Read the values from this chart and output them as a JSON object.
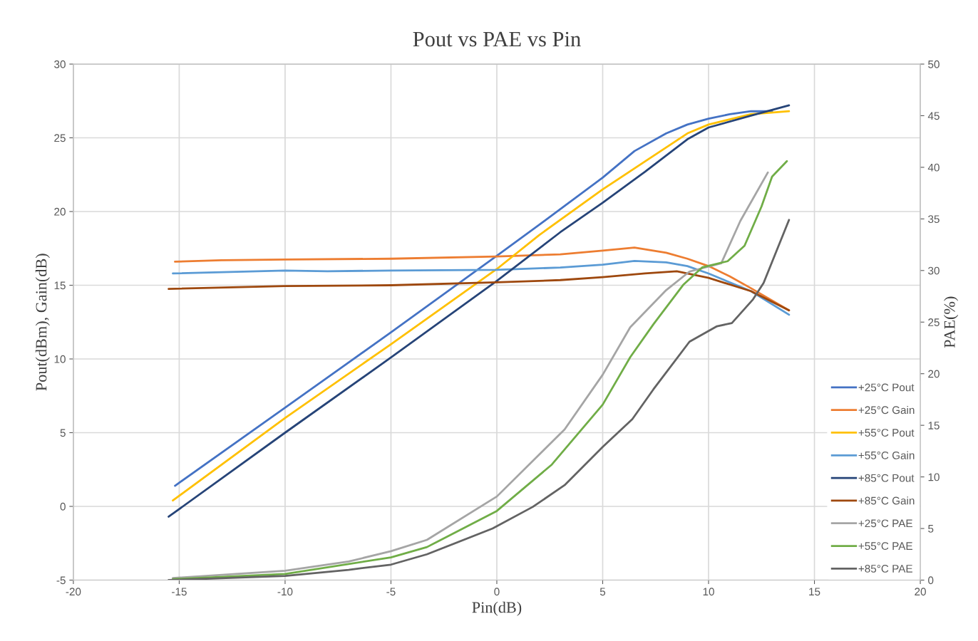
{
  "chart_data": {
    "type": "line",
    "title": "Pout vs PAE vs Pin",
    "xlabel": "Pin(dB)",
    "ylabel": "Pout(dBm), Gain(dB)",
    "y2label": "PAE(%)",
    "xlim": [
      -20,
      20
    ],
    "xticks": [
      -20,
      -15,
      -10,
      -5,
      0,
      5,
      10,
      15,
      20
    ],
    "ylim": [
      -5,
      30
    ],
    "yticks": [
      -5,
      0,
      5,
      10,
      15,
      20,
      25,
      30
    ],
    "y2lim": [
      0,
      50
    ],
    "y2ticks": [
      0,
      5,
      10,
      15,
      20,
      25,
      30,
      35,
      40,
      45,
      50
    ],
    "grid": true,
    "legend": "bottom right",
    "marker": "none",
    "line_style": "solid",
    "series": [
      {
        "name": "+25°C Pout",
        "color": "#4472c4",
        "x": [
          -15.2,
          -10,
          -5,
          0,
          2,
          5,
          6.5,
          8,
          9,
          10,
          11,
          12,
          13
        ],
        "values": [
          1.4,
          6.7,
          11.8,
          17.0,
          19.1,
          22.3,
          24.1,
          25.3,
          25.9,
          26.3,
          26.6,
          26.8,
          26.8
        ]
      },
      {
        "name": "+25°C Gain",
        "color": "#ed7d31",
        "x": [
          -15.2,
          -13,
          -10,
          -5,
          0,
          3,
          5,
          6.5,
          8,
          9,
          10,
          11,
          12,
          13.8
        ],
        "values": [
          16.6,
          16.7,
          16.75,
          16.8,
          16.95,
          17.1,
          17.35,
          17.55,
          17.2,
          16.8,
          16.3,
          15.6,
          14.8,
          13.3
        ]
      },
      {
        "name": "+55°C Pout",
        "color": "#ffc000",
        "x": [
          -15.3,
          -10,
          -5,
          0,
          2,
          5,
          7,
          9,
          10,
          12,
          13.8
        ],
        "values": [
          0.4,
          6.0,
          11.0,
          16.1,
          18.4,
          21.5,
          23.4,
          25.3,
          25.9,
          26.6,
          26.8
        ]
      },
      {
        "name": "+55°C Gain",
        "color": "#5b9bd5",
        "x": [
          -15.3,
          -10,
          -8,
          -5,
          0,
          3,
          5,
          6.5,
          8,
          9,
          10,
          12,
          13.8
        ],
        "values": [
          15.8,
          16.0,
          15.95,
          16.0,
          16.05,
          16.2,
          16.4,
          16.65,
          16.55,
          16.3,
          15.8,
          14.6,
          13.0
        ]
      },
      {
        "name": "+85°C Pout",
        "color": "#264478",
        "x": [
          -15.5,
          -10,
          -5,
          0,
          3,
          5,
          7,
          9,
          10,
          12,
          13.8
        ],
        "values": [
          -0.7,
          5.0,
          10.1,
          15.3,
          18.6,
          20.6,
          22.7,
          24.9,
          25.7,
          26.5,
          27.2
        ]
      },
      {
        "name": "+85°C Gain",
        "color": "#9e480e",
        "x": [
          -15.5,
          -10,
          -5,
          0,
          3,
          5,
          7,
          8.5,
          10,
          12,
          13.8
        ],
        "values": [
          14.75,
          14.95,
          15.0,
          15.2,
          15.35,
          15.55,
          15.8,
          15.95,
          15.5,
          14.6,
          13.3
        ]
      },
      {
        "name": "+25°C PAE",
        "color": "#a5a5a5",
        "axis": "y2",
        "x": [
          -15.3,
          -10,
          -7,
          -5,
          -3.3,
          0,
          3.2,
          5,
          6.3,
          8,
          9.1,
          10.6,
          11.5,
          12.8
        ],
        "values": [
          0.2,
          0.9,
          1.8,
          2.8,
          3.9,
          8.1,
          14.6,
          19.9,
          24.5,
          28.1,
          29.9,
          30.7,
          34.8,
          39.5
        ]
      },
      {
        "name": "+55°C PAE",
        "color": "#70ad47",
        "axis": "y2",
        "x": [
          -15.3,
          -10,
          -5,
          -3.3,
          0,
          2.6,
          5,
          6.3,
          7.4,
          8.8,
          9.7,
          10.9,
          11.7,
          12.5,
          13,
          13.7
        ],
        "values": [
          0.1,
          0.6,
          2.2,
          3.2,
          6.7,
          11.2,
          17.0,
          21.6,
          24.8,
          28.6,
          30.3,
          30.9,
          32.4,
          36.2,
          39.1,
          40.6
        ]
      },
      {
        "name": "+85°C PAE",
        "color": "#636363",
        "axis": "y2",
        "x": [
          -15.5,
          -10,
          -7,
          -5,
          -3.3,
          -0.2,
          1.7,
          3.2,
          5,
          6.4,
          7.4,
          9.1,
          10.4,
          11.1,
          12.1,
          12.6,
          13.8
        ],
        "values": [
          0.0,
          0.4,
          1.0,
          1.5,
          2.5,
          5.0,
          7.1,
          9.2,
          12.9,
          15.6,
          18.5,
          23.1,
          24.6,
          24.9,
          27.2,
          28.8,
          34.9
        ]
      }
    ]
  }
}
